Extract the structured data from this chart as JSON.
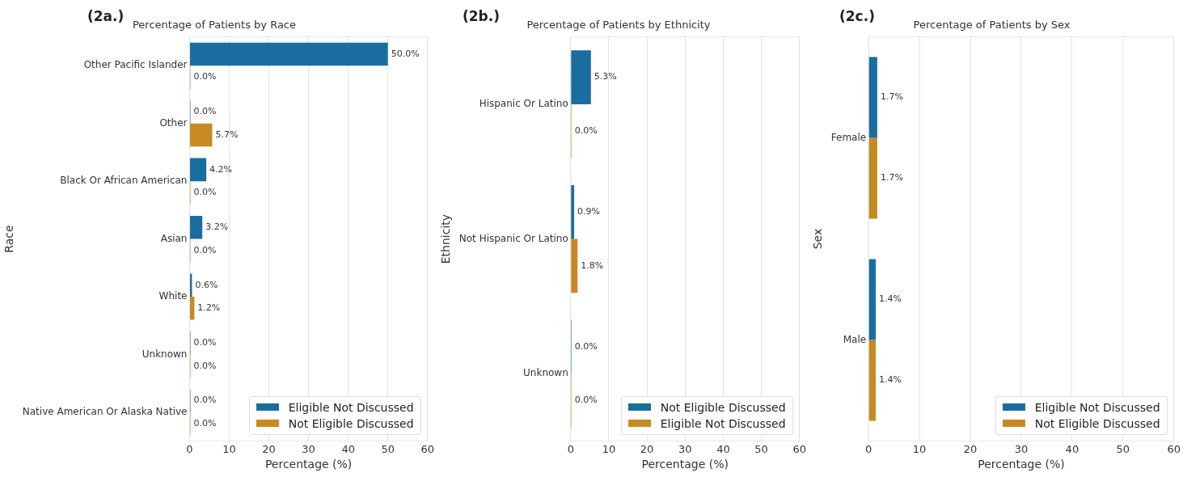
{
  "chart_data": [
    {
      "type": "bar",
      "orientation": "horizontal",
      "title": "Percentage of Patients by Race",
      "xlabel": "Percentage (%)",
      "ylabel": "Race",
      "annotations": [
        "(2a.)"
      ],
      "categories": [
        "Other Pacific Islander",
        "Other",
        "Black Or African American",
        "Asian",
        "White",
        "Unknown",
        "Native American Or Alaska Native"
      ],
      "series": [
        {
          "name": "Eligible Not Discussed",
          "color": "#1a6e9f",
          "values": [
            50.0,
            0.0,
            4.2,
            3.2,
            0.6,
            0.0,
            0.0
          ],
          "value_labels": [
            "50.0%",
            "0.0%",
            "4.2%",
            "3.2%",
            "0.6%",
            "0.0%",
            "0.0%"
          ]
        },
        {
          "name": "Not Eligible Discussed",
          "color": "#c78a22",
          "values": [
            0.0,
            5.7,
            0.0,
            0.0,
            1.2,
            0.0,
            0.0
          ],
          "value_labels": [
            "0.0%",
            "5.7%",
            "0.0%",
            "0.0%",
            "1.2%",
            "0.0%",
            "0.0%"
          ]
        }
      ],
      "xlim": [
        0,
        60
      ],
      "xticks": [
        0,
        10,
        20,
        30,
        40,
        50,
        60
      ],
      "grid": "x",
      "legend": "bottom right"
    },
    {
      "type": "bar",
      "orientation": "horizontal",
      "title": "Percentage of Patients by Ethnicity",
      "xlabel": "Percentage (%)",
      "ylabel": "Ethnicity",
      "annotations": [
        "(2b.)"
      ],
      "categories": [
        "Hispanic Or Latino",
        "Not Hispanic Or Latino",
        "Unknown"
      ],
      "series": [
        {
          "name": "Not Eligible Discussed",
          "color": "#1a6e9f",
          "values": [
            5.3,
            0.9,
            0.0
          ],
          "value_labels": [
            "5.3%",
            "0.9%",
            "0.0%"
          ]
        },
        {
          "name": "Eligible Not Discussed",
          "color": "#c78a22",
          "values": [
            0.0,
            1.8,
            0.0
          ],
          "value_labels": [
            "0.0%",
            "1.8%",
            "0.0%"
          ]
        }
      ],
      "xlim": [
        0,
        60
      ],
      "xticks": [
        0,
        10,
        20,
        30,
        40,
        50,
        60
      ],
      "grid": "x",
      "legend": "bottom right"
    },
    {
      "type": "bar",
      "orientation": "horizontal",
      "title": "Percentage of Patients by Sex",
      "xlabel": "Percentage (%)",
      "ylabel": "Sex",
      "annotations": [
        "(2c.)"
      ],
      "categories": [
        "Female",
        "Male"
      ],
      "series": [
        {
          "name": "Eligible Not Discussed",
          "color": "#1a6e9f",
          "values": [
            1.7,
            1.4
          ],
          "value_labels": [
            "1.7%",
            "1.4%"
          ]
        },
        {
          "name": "Not Eligible Discussed",
          "color": "#c78a22",
          "values": [
            1.7,
            1.4
          ],
          "value_labels": [
            "1.7%",
            "1.4%"
          ]
        }
      ],
      "xlim": [
        0,
        60
      ],
      "xticks": [
        0,
        10,
        20,
        30,
        40,
        50,
        60
      ],
      "grid": "x",
      "legend": "bottom right"
    }
  ]
}
